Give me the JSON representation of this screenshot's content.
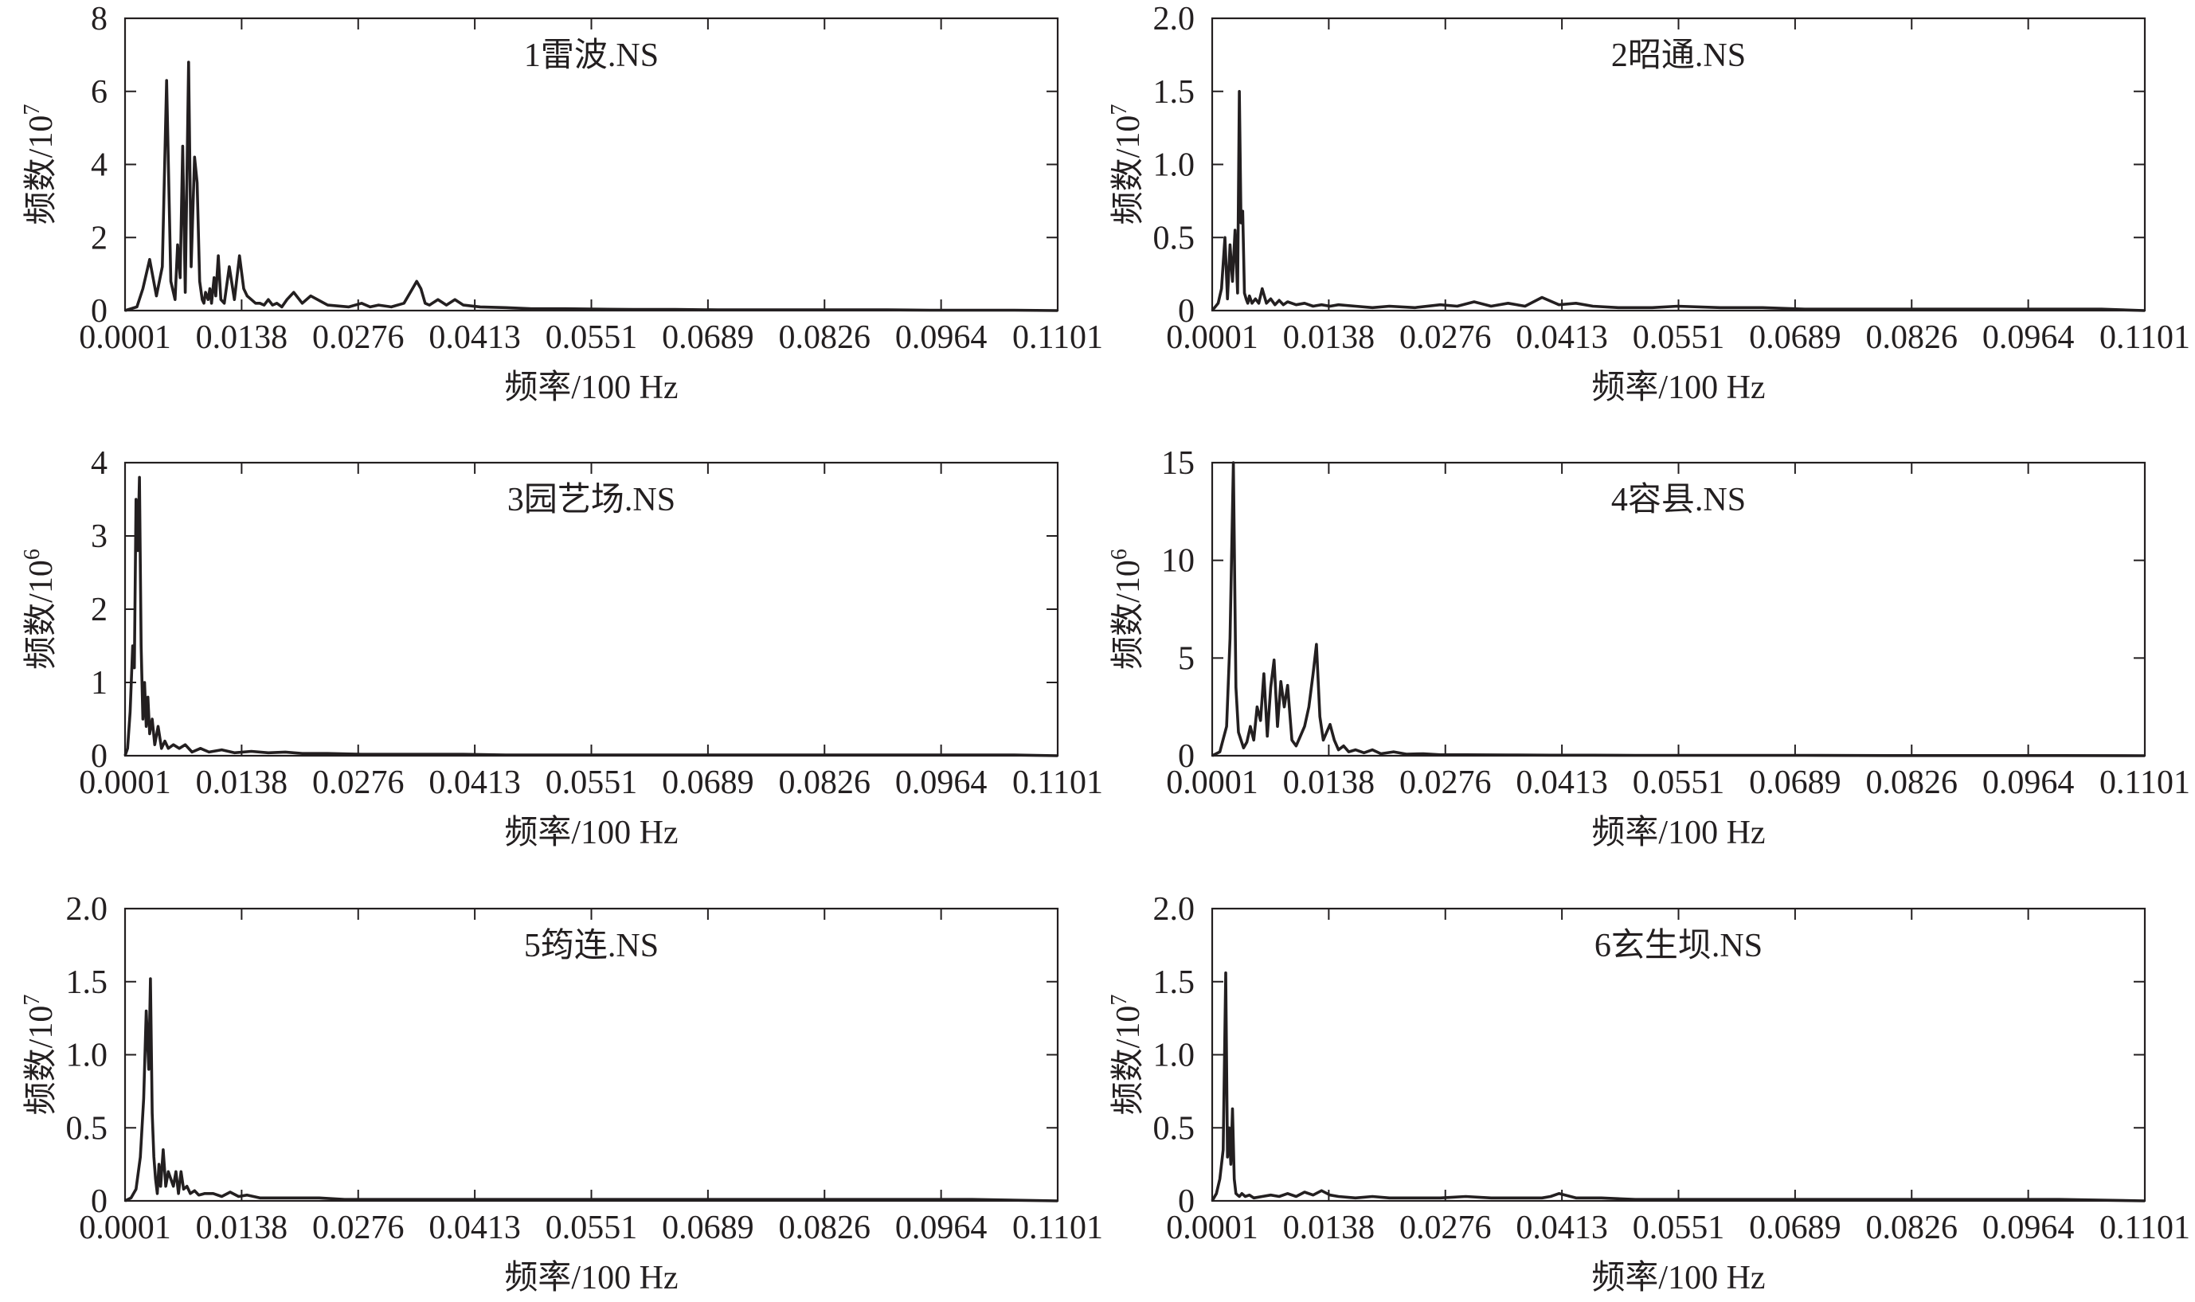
{
  "chart_data": [
    {
      "type": "line",
      "title": "1雷波.NS",
      "xlabel": "频率/100 Hz",
      "ylabel": "频数/10",
      "ylabel_sup": "7",
      "xlim": [
        0.0001,
        0.1101
      ],
      "ylim": [
        0,
        8
      ],
      "x_ticks": [
        "0.0001",
        "0.0138",
        "0.0276",
        "0.0413",
        "0.0551",
        "0.0689",
        "0.0826",
        "0.0964",
        "0.1101"
      ],
      "y_ticks": [
        "0",
        "2",
        "4",
        "6",
        "8"
      ],
      "grid": false,
      "series": [
        {
          "x": [
            0.0001,
            0.0015,
            0.0022,
            0.003,
            0.0038,
            0.0045,
            0.005,
            0.0055,
            0.006,
            0.0063,
            0.0066,
            0.0069,
            0.0072,
            0.0076,
            0.0079,
            0.0083,
            0.0086,
            0.0089,
            0.0092,
            0.0094,
            0.0096,
            0.0099,
            0.0101,
            0.0103,
            0.0106,
            0.0108,
            0.0111,
            0.0114,
            0.0118,
            0.0124,
            0.013,
            0.0136,
            0.0141,
            0.0145,
            0.015,
            0.0155,
            0.016,
            0.0165,
            0.017,
            0.0175,
            0.018,
            0.0186,
            0.0192,
            0.02,
            0.021,
            0.022,
            0.024,
            0.0265,
            0.028,
            0.029,
            0.03,
            0.0315,
            0.033,
            0.034,
            0.0345,
            0.035,
            0.0355,
            0.036,
            0.037,
            0.038,
            0.039,
            0.04,
            0.042,
            0.045,
            0.048,
            0.052,
            0.056,
            0.06,
            0.065,
            0.07,
            0.075,
            0.08,
            0.085,
            0.09,
            0.095,
            0.1,
            0.105,
            0.1101
          ],
          "values": [
            0,
            0.1,
            0.6,
            1.4,
            0.4,
            1.2,
            6.3,
            0.8,
            0.3,
            1.8,
            0.9,
            4.5,
            0.5,
            6.8,
            1.2,
            4.2,
            3.5,
            0.8,
            0.3,
            0.2,
            0.5,
            0.3,
            0.6,
            0.2,
            0.9,
            0.4,
            1.5,
            0.3,
            0.2,
            1.2,
            0.3,
            1.5,
            0.6,
            0.4,
            0.3,
            0.2,
            0.2,
            0.15,
            0.3,
            0.15,
            0.2,
            0.1,
            0.3,
            0.5,
            0.2,
            0.4,
            0.15,
            0.1,
            0.2,
            0.1,
            0.15,
            0.1,
            0.2,
            0.6,
            0.8,
            0.6,
            0.2,
            0.15,
            0.3,
            0.15,
            0.3,
            0.15,
            0.1,
            0.08,
            0.05,
            0.05,
            0.04,
            0.03,
            0.03,
            0.02,
            0.02,
            0.02,
            0.02,
            0.02,
            0.01,
            0.01,
            0.01,
            0
          ]
        }
      ]
    },
    {
      "type": "line",
      "title": "2昭通.NS",
      "xlabel": "频率/100 Hz",
      "ylabel": "频数/10",
      "ylabel_sup": "7",
      "xlim": [
        0.0001,
        0.1101
      ],
      "ylim": [
        0,
        2.0
      ],
      "x_ticks": [
        "0.0001",
        "0.0138",
        "0.0276",
        "0.0413",
        "0.0551",
        "0.0689",
        "0.0826",
        "0.0964",
        "0.1101"
      ],
      "y_ticks": [
        "0",
        "0.5",
        "1.0",
        "1.5",
        "2.0"
      ],
      "grid": false,
      "series": [
        {
          "x": [
            0.0001,
            0.0008,
            0.0012,
            0.0016,
            0.0019,
            0.0022,
            0.0025,
            0.0028,
            0.0031,
            0.0033,
            0.0035,
            0.0037,
            0.0039,
            0.0041,
            0.0043,
            0.0045,
            0.0048,
            0.0052,
            0.0056,
            0.006,
            0.0065,
            0.007,
            0.0075,
            0.008,
            0.0085,
            0.009,
            0.01,
            0.011,
            0.012,
            0.013,
            0.014,
            0.015,
            0.017,
            0.019,
            0.021,
            0.024,
            0.027,
            0.029,
            0.031,
            0.033,
            0.035,
            0.037,
            0.039,
            0.041,
            0.043,
            0.045,
            0.048,
            0.052,
            0.055,
            0.06,
            0.065,
            0.07,
            0.075,
            0.08,
            0.085,
            0.09,
            0.095,
            0.1,
            0.105,
            0.1101
          ],
          "values": [
            0,
            0.05,
            0.15,
            0.5,
            0.08,
            0.45,
            0.2,
            0.55,
            0.12,
            1.5,
            0.6,
            0.68,
            0.12,
            0.08,
            0.05,
            0.1,
            0.05,
            0.08,
            0.05,
            0.15,
            0.05,
            0.08,
            0.04,
            0.07,
            0.04,
            0.06,
            0.04,
            0.05,
            0.03,
            0.04,
            0.03,
            0.04,
            0.03,
            0.02,
            0.03,
            0.02,
            0.04,
            0.03,
            0.06,
            0.03,
            0.05,
            0.03,
            0.09,
            0.04,
            0.05,
            0.03,
            0.02,
            0.02,
            0.03,
            0.02,
            0.02,
            0.01,
            0.01,
            0.01,
            0.01,
            0.01,
            0.01,
            0.01,
            0.01,
            0
          ]
        }
      ]
    },
    {
      "type": "line",
      "title": "3园艺场.NS",
      "xlabel": "频率/100 Hz",
      "ylabel": "频数/10",
      "ylabel_sup": "6",
      "xlim": [
        0.0001,
        0.1101
      ],
      "ylim": [
        0,
        4
      ],
      "x_ticks": [
        "0.0001",
        "0.0138",
        "0.0276",
        "0.0413",
        "0.0551",
        "0.0689",
        "0.0826",
        "0.0964",
        "0.1101"
      ],
      "y_ticks": [
        "0",
        "1",
        "2",
        "3",
        "4"
      ],
      "grid": false,
      "series": [
        {
          "x": [
            0.0001,
            0.0004,
            0.0007,
            0.001,
            0.0012,
            0.0014,
            0.0016,
            0.0018,
            0.002,
            0.0022,
            0.0024,
            0.0026,
            0.0028,
            0.003,
            0.0033,
            0.0036,
            0.004,
            0.0044,
            0.0048,
            0.0052,
            0.0058,
            0.0065,
            0.0072,
            0.008,
            0.009,
            0.01,
            0.0115,
            0.013,
            0.015,
            0.017,
            0.019,
            0.021,
            0.024,
            0.028,
            0.032,
            0.036,
            0.04,
            0.045,
            0.05,
            0.055,
            0.06,
            0.065,
            0.07,
            0.075,
            0.08,
            0.085,
            0.09,
            0.095,
            0.1,
            0.105,
            0.1101
          ],
          "values": [
            0,
            0.1,
            0.6,
            1.5,
            1.2,
            3.5,
            2.8,
            3.8,
            1.5,
            0.5,
            1.0,
            0.4,
            0.8,
            0.3,
            0.5,
            0.15,
            0.4,
            0.1,
            0.2,
            0.1,
            0.15,
            0.1,
            0.15,
            0.05,
            0.1,
            0.05,
            0.08,
            0.04,
            0.06,
            0.04,
            0.05,
            0.03,
            0.03,
            0.02,
            0.02,
            0.02,
            0.02,
            0.01,
            0.01,
            0.01,
            0.01,
            0.01,
            0.01,
            0.01,
            0.01,
            0.01,
            0.01,
            0.01,
            0.01,
            0.01,
            0
          ]
        }
      ]
    },
    {
      "type": "line",
      "title": "4容县.NS",
      "xlabel": "频率/100 Hz",
      "ylabel": "频数/10",
      "ylabel_sup": "6",
      "xlim": [
        0.0001,
        0.1101
      ],
      "ylim": [
        0,
        15
      ],
      "x_ticks": [
        "0.0001",
        "0.0138",
        "0.0276",
        "0.0413",
        "0.0551",
        "0.0689",
        "0.0826",
        "0.0964",
        "0.1101"
      ],
      "y_ticks": [
        "0",
        "5",
        "10",
        "15"
      ],
      "grid": false,
      "series": [
        {
          "x": [
            0.0001,
            0.001,
            0.0018,
            0.0022,
            0.0026,
            0.0029,
            0.0032,
            0.0035,
            0.0038,
            0.0042,
            0.0046,
            0.005,
            0.0054,
            0.0058,
            0.0062,
            0.0066,
            0.007,
            0.0074,
            0.0078,
            0.0082,
            0.0086,
            0.009,
            0.0095,
            0.01,
            0.0105,
            0.011,
            0.0115,
            0.012,
            0.0124,
            0.0128,
            0.0132,
            0.0136,
            0.014,
            0.0145,
            0.015,
            0.0156,
            0.0162,
            0.017,
            0.018,
            0.019,
            0.02,
            0.0215,
            0.023,
            0.025,
            0.027,
            0.03,
            0.035,
            0.04,
            0.045,
            0.05,
            0.06,
            0.07,
            0.08,
            0.09,
            0.1,
            0.1101
          ],
          "values": [
            0,
            0.2,
            1.5,
            6.0,
            15.0,
            3.5,
            1.2,
            0.8,
            0.4,
            0.7,
            1.5,
            0.8,
            2.5,
            1.8,
            4.2,
            1.0,
            3.5,
            4.9,
            1.5,
            3.8,
            2.5,
            3.6,
            0.8,
            0.5,
            1.0,
            1.5,
            2.5,
            4.2,
            5.7,
            2.0,
            0.8,
            1.2,
            1.6,
            0.8,
            0.3,
            0.5,
            0.2,
            0.3,
            0.15,
            0.3,
            0.1,
            0.2,
            0.08,
            0.1,
            0.05,
            0.05,
            0.04,
            0.03,
            0.03,
            0.02,
            0.02,
            0.02,
            0.01,
            0.01,
            0.01,
            0
          ]
        }
      ]
    },
    {
      "type": "line",
      "title": "5筠连.NS",
      "xlabel": "频率/100 Hz",
      "ylabel": "频数/10",
      "ylabel_sup": "7",
      "xlim": [
        0.0001,
        0.1101
      ],
      "ylim": [
        0,
        2.0
      ],
      "x_ticks": [
        "0.0001",
        "0.0138",
        "0.0276",
        "0.0413",
        "0.0551",
        "0.0689",
        "0.0826",
        "0.0964",
        "0.1101"
      ],
      "y_ticks": [
        "0",
        "0.5",
        "1.0",
        "1.5",
        "2.0"
      ],
      "grid": false,
      "series": [
        {
          "x": [
            0.0001,
            0.0008,
            0.0014,
            0.0019,
            0.0023,
            0.0026,
            0.0029,
            0.0031,
            0.0033,
            0.0035,
            0.0037,
            0.0039,
            0.0041,
            0.0043,
            0.0046,
            0.0049,
            0.0052,
            0.0055,
            0.0058,
            0.0061,
            0.0064,
            0.0067,
            0.007,
            0.0074,
            0.0078,
            0.0083,
            0.0088,
            0.0095,
            0.0105,
            0.0115,
            0.0125,
            0.0135,
            0.0145,
            0.016,
            0.018,
            0.02,
            0.023,
            0.026,
            0.029,
            0.032,
            0.036,
            0.04,
            0.045,
            0.05,
            0.055,
            0.06,
            0.07,
            0.08,
            0.09,
            0.1,
            0.1101
          ],
          "values": [
            0,
            0.02,
            0.08,
            0.3,
            0.7,
            1.3,
            0.9,
            1.52,
            0.6,
            0.3,
            0.15,
            0.05,
            0.25,
            0.1,
            0.35,
            0.1,
            0.2,
            0.15,
            0.1,
            0.2,
            0.05,
            0.2,
            0.08,
            0.1,
            0.05,
            0.07,
            0.04,
            0.05,
            0.05,
            0.03,
            0.06,
            0.03,
            0.04,
            0.02,
            0.02,
            0.02,
            0.02,
            0.01,
            0.01,
            0.01,
            0.01,
            0.01,
            0.01,
            0.01,
            0.01,
            0.01,
            0.01,
            0.01,
            0.01,
            0.01,
            0
          ]
        }
      ]
    },
    {
      "type": "line",
      "title": "6玄生坝.NS",
      "xlabel": "频率/100 Hz",
      "ylabel": "频数/10",
      "ylabel_sup": "7",
      "xlim": [
        0.0001,
        0.1101
      ],
      "ylim": [
        0,
        2.0
      ],
      "x_ticks": [
        "0.0001",
        "0.0138",
        "0.0276",
        "0.0413",
        "0.0551",
        "0.0689",
        "0.0826",
        "0.0964",
        "0.1101"
      ],
      "y_ticks": [
        "0",
        "0.5",
        "1.0",
        "1.5",
        "2.0"
      ],
      "grid": false,
      "series": [
        {
          "x": [
            0.0001,
            0.0006,
            0.001,
            0.0014,
            0.0017,
            0.0019,
            0.0021,
            0.0023,
            0.0025,
            0.0027,
            0.0029,
            0.0031,
            0.0033,
            0.0036,
            0.004,
            0.0045,
            0.005,
            0.006,
            0.007,
            0.008,
            0.009,
            0.01,
            0.011,
            0.012,
            0.013,
            0.014,
            0.015,
            0.017,
            0.019,
            0.021,
            0.024,
            0.027,
            0.03,
            0.033,
            0.036,
            0.039,
            0.04,
            0.041,
            0.043,
            0.046,
            0.05,
            0.055,
            0.06,
            0.065,
            0.07,
            0.08,
            0.09,
            0.1,
            0.1101
          ],
          "values": [
            0,
            0.05,
            0.15,
            0.35,
            1.56,
            0.3,
            0.5,
            0.25,
            0.63,
            0.15,
            0.05,
            0.04,
            0.03,
            0.05,
            0.03,
            0.04,
            0.02,
            0.03,
            0.04,
            0.03,
            0.05,
            0.03,
            0.06,
            0.04,
            0.07,
            0.04,
            0.03,
            0.02,
            0.03,
            0.02,
            0.02,
            0.02,
            0.03,
            0.02,
            0.02,
            0.02,
            0.03,
            0.05,
            0.02,
            0.02,
            0.01,
            0.01,
            0.01,
            0.01,
            0.01,
            0.01,
            0.01,
            0.01,
            0
          ]
        }
      ]
    }
  ]
}
